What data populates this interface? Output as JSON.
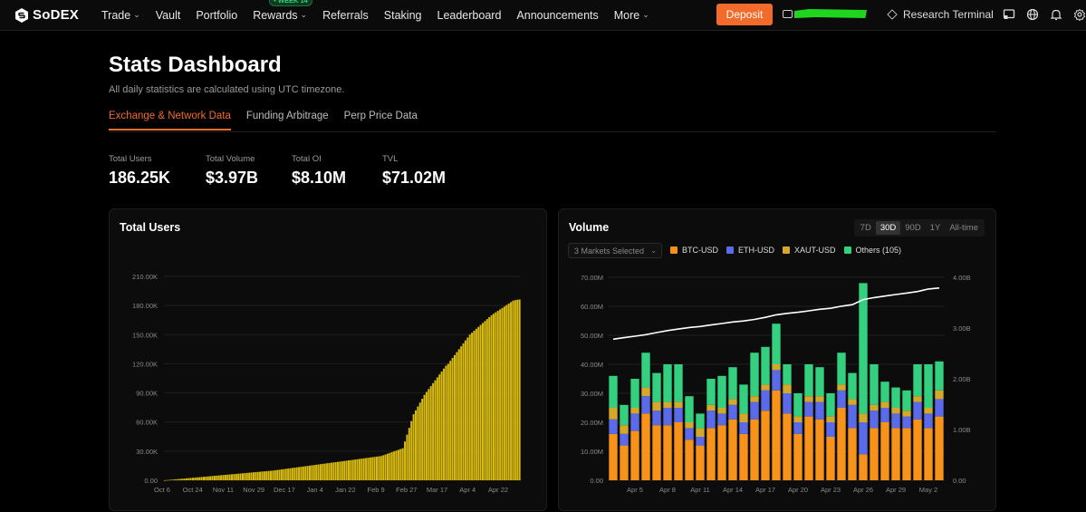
{
  "nav": {
    "brand": "SoDEX",
    "items": [
      {
        "label": "Trade",
        "has_chevron": true
      },
      {
        "label": "Vault",
        "has_chevron": false
      },
      {
        "label": "Portfolio",
        "has_chevron": false
      },
      {
        "label": "Rewards",
        "has_chevron": true
      },
      {
        "label": "Referrals",
        "has_chevron": false
      },
      {
        "label": "Staking",
        "has_chevron": false
      },
      {
        "label": "Leaderboard",
        "has_chevron": false
      },
      {
        "label": "Announcements",
        "has_chevron": false
      },
      {
        "label": "More",
        "has_chevron": true
      }
    ],
    "rewards_badge": "• WEEK 14",
    "deposit_label": "Deposit",
    "research_label": "Research Terminal",
    "icons": [
      "cast-icon",
      "globe-icon",
      "bell-icon",
      "settings-icon"
    ]
  },
  "header": {
    "title": "Stats Dashboard",
    "subtitle": "All daily statistics are calculated using UTC timezone."
  },
  "tabs": [
    {
      "label": "Exchange & Network Data",
      "active": true
    },
    {
      "label": "Funding Arbitrage",
      "active": false
    },
    {
      "label": "Perp Price Data",
      "active": false
    }
  ],
  "stats": [
    {
      "label": "Total Users",
      "value": "186.25K"
    },
    {
      "label": "Total Volume",
      "value": "$3.97B"
    },
    {
      "label": "Total OI",
      "value": "$8.10M"
    },
    {
      "label": "TVL",
      "value": "$71.02M"
    }
  ],
  "colors": {
    "accent": "#f26b2b",
    "users_bar": "#d9bb0a",
    "btc": "#f7931a",
    "eth": "#5a6ae8",
    "xaut": "#d4a82a",
    "others": "#35d07f",
    "cumulative_line": "#ffffff"
  },
  "volume_controls": {
    "markets_select": "3 Markets Selected",
    "ranges": [
      {
        "label": "7D",
        "active": false
      },
      {
        "label": "30D",
        "active": true
      },
      {
        "label": "90D",
        "active": false
      },
      {
        "label": "1Y",
        "active": false
      },
      {
        "label": "All-time",
        "active": false
      }
    ]
  },
  "chart_data": [
    {
      "type": "bar",
      "title": "Total Users",
      "y_tick_labels": [
        "0.00",
        "30.00K",
        "60.00K",
        "90.00K",
        "120.00K",
        "150.00K",
        "180.00K",
        "210.00K"
      ],
      "ylim": [
        0,
        210000
      ],
      "x_tick_labels": [
        "Oct 6",
        "Oct 24",
        "Nov 11",
        "Nov 29",
        "Dec 17",
        "Jan 4",
        "Jan 22",
        "Feb 9",
        "Feb 27",
        "Mar 17",
        "Apr 4",
        "Apr 22"
      ],
      "x_start": "Oct 6",
      "x_end": "Apr 30",
      "grid": true,
      "series": [
        {
          "values": [
            0,
            200,
            400,
            600,
            800,
            1000,
            1200,
            1400,
            1600,
            1800,
            2000,
            2200,
            2400,
            2600,
            2800,
            3000,
            3200,
            3400,
            3600,
            3800,
            4000,
            4200,
            4400,
            4600,
            4800,
            5000,
            5200,
            5400,
            5600,
            5800,
            6000,
            6200,
            6400,
            6600,
            6800,
            7000,
            7200,
            7400,
            7600,
            7800,
            8000,
            8200,
            8400,
            8600,
            8800,
            9000,
            9200,
            9400,
            9600,
            9800,
            10000,
            10300,
            10600,
            10900,
            11200,
            11500,
            11800,
            12100,
            12400,
            12700,
            13000,
            13300,
            13600,
            13900,
            14200,
            14500,
            14800,
            15100,
            15400,
            15700,
            16000,
            16300,
            16600,
            16900,
            17200,
            17500,
            17800,
            18100,
            18400,
            18700,
            19000,
            19300,
            19600,
            19900,
            20200,
            20500,
            20800,
            21100,
            21400,
            21700,
            22000,
            22300,
            22600,
            22900,
            23200,
            23500,
            23800,
            24100,
            24400,
            24700,
            25000,
            25800,
            26600,
            27400,
            28200,
            29000,
            29800,
            30600,
            31400,
            32200,
            33000,
            40000,
            47000,
            54000,
            61000,
            68000,
            72000,
            76000,
            80000,
            84000,
            88000,
            91000,
            94000,
            97000,
            100000,
            103000,
            106000,
            109000,
            112000,
            115000,
            118000,
            120000,
            123000,
            126000,
            129000,
            132000,
            135000,
            138000,
            141000,
            144000,
            147000,
            150000,
            152000,
            154000,
            156000,
            158000,
            160000,
            162000,
            164000,
            166000,
            168000,
            170000,
            171500,
            173000,
            174500,
            176000,
            177500,
            179000,
            180500,
            182000,
            183500,
            185000,
            185500,
            186000,
            186250
          ]
        }
      ]
    },
    {
      "type": "bar",
      "stacked": true,
      "title": "Volume",
      "x_tick_labels": [
        "Apr 5",
        "Apr 8",
        "Apr 11",
        "Apr 14",
        "Apr 17",
        "Apr 20",
        "Apr 23",
        "Apr 26",
        "Apr 29",
        "May 2"
      ],
      "x_start": "Apr 3",
      "x_end": "May 3",
      "y_tick_labels": [
        "0.00",
        "10.00M",
        "20.00M",
        "30.00M",
        "40.00M",
        "50.00M",
        "60.00M",
        "70.00M"
      ],
      "y2_tick_labels": [
        "0.00",
        "1.00B",
        "2.00B",
        "3.00B",
        "4.00B"
      ],
      "ylim": [
        0,
        70000000
      ],
      "y2lim": [
        0,
        4000000000
      ],
      "grid": true,
      "legend_position": "top-left",
      "series": [
        {
          "name": "BTC-USD",
          "values": [
            16000000,
            12000000,
            17000000,
            23000000,
            19000000,
            19000000,
            20000000,
            14000000,
            12000000,
            18000000,
            19000000,
            21000000,
            16000000,
            21000000,
            24000000,
            31000000,
            23000000,
            16000000,
            22000000,
            21000000,
            15000000,
            25000000,
            18000000,
            9000000,
            18000000,
            20000000,
            18000000,
            18000000,
            21000000,
            18000000,
            22000000
          ]
        },
        {
          "name": "ETH-USD",
          "values": [
            5000000,
            4000000,
            6000000,
            6000000,
            5000000,
            6000000,
            5000000,
            4000000,
            3000000,
            6000000,
            4000000,
            5000000,
            4000000,
            6000000,
            7000000,
            7000000,
            7000000,
            4000000,
            5000000,
            6000000,
            5000000,
            6000000,
            8000000,
            11000000,
            6000000,
            5000000,
            5000000,
            4000000,
            6000000,
            5000000,
            6000000
          ]
        },
        {
          "name": "XAUT-USD",
          "values": [
            4000000,
            3000000,
            2000000,
            3000000,
            3000000,
            2000000,
            2000000,
            2000000,
            3000000,
            2000000,
            2000000,
            2000000,
            3000000,
            2000000,
            2000000,
            2000000,
            3000000,
            2000000,
            2000000,
            2000000,
            2000000,
            2000000,
            2000000,
            3000000,
            2000000,
            2000000,
            2000000,
            2000000,
            2000000,
            2000000,
            3000000
          ]
        },
        {
          "name": "Others (105)",
          "values": [
            11000000,
            7000000,
            10000000,
            12000000,
            10000000,
            13000000,
            13000000,
            9000000,
            5000000,
            9000000,
            11000000,
            11000000,
            10000000,
            15000000,
            13000000,
            14000000,
            7000000,
            8000000,
            11000000,
            10000000,
            8000000,
            11000000,
            9000000,
            45000000,
            14000000,
            7000000,
            7000000,
            7000000,
            11000000,
            15000000,
            10000000
          ]
        }
      ],
      "line": {
        "axis": "right",
        "values": [
          2780000000,
          2810000000,
          2840000000,
          2870000000,
          2910000000,
          2950000000,
          2980000000,
          3010000000,
          3030000000,
          3060000000,
          3090000000,
          3120000000,
          3140000000,
          3170000000,
          3210000000,
          3260000000,
          3290000000,
          3310000000,
          3340000000,
          3370000000,
          3390000000,
          3430000000,
          3460000000,
          3560000000,
          3600000000,
          3630000000,
          3660000000,
          3690000000,
          3720000000,
          3770000000,
          3790000000
        ]
      }
    }
  ]
}
